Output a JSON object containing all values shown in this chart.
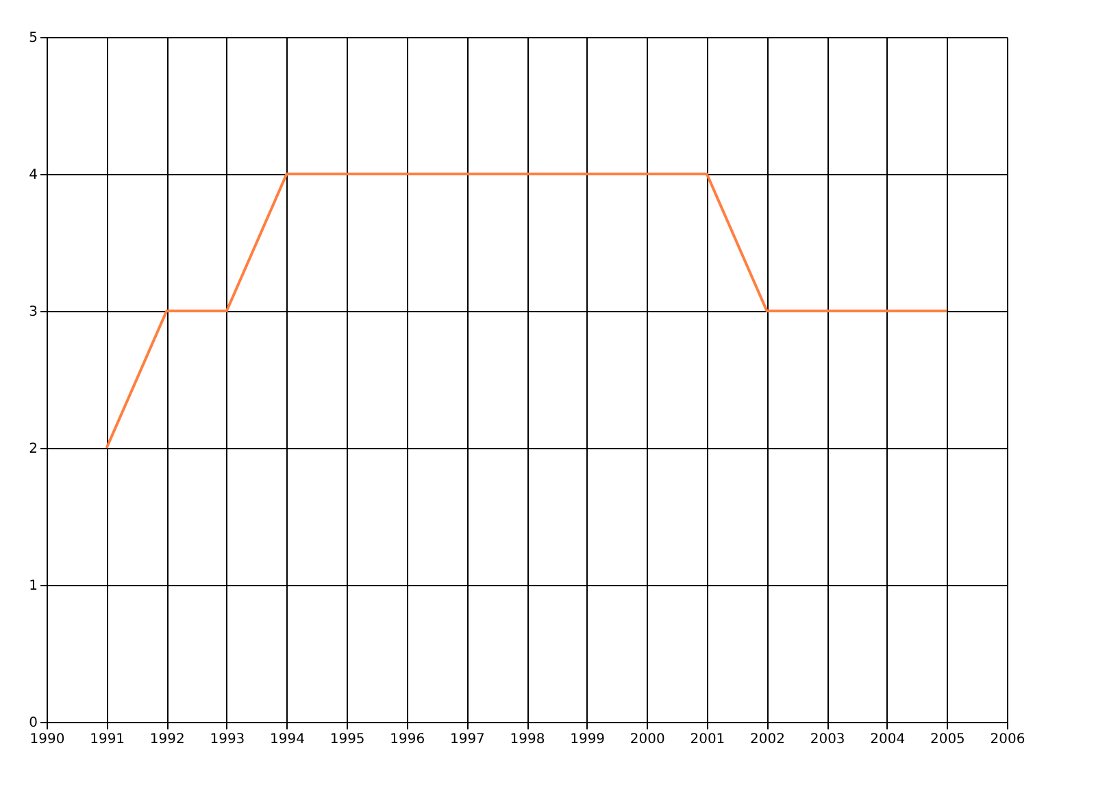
{
  "chart_data": {
    "type": "line",
    "x": [
      1991,
      1992,
      1993,
      1994,
      1995,
      1996,
      1997,
      1998,
      1999,
      2000,
      2001,
      2002,
      2003,
      2004,
      2005
    ],
    "series": [
      {
        "color": "#ff7f40",
        "values": [
          2,
          3,
          3,
          4,
          4,
          4,
          4,
          4,
          4,
          4,
          4,
          3,
          3,
          3,
          3
        ]
      }
    ],
    "xlim": [
      1990,
      2006
    ],
    "xticks": [
      1990,
      1991,
      1992,
      1993,
      1994,
      1995,
      1996,
      1997,
      1998,
      1999,
      2000,
      2001,
      2002,
      2003,
      2004,
      2005,
      2006
    ],
    "ylim": [
      0,
      5
    ],
    "yticks": [
      0,
      1,
      2,
      3,
      4,
      5
    ],
    "grid": true,
    "marker": "none",
    "line_style": "solid"
  }
}
